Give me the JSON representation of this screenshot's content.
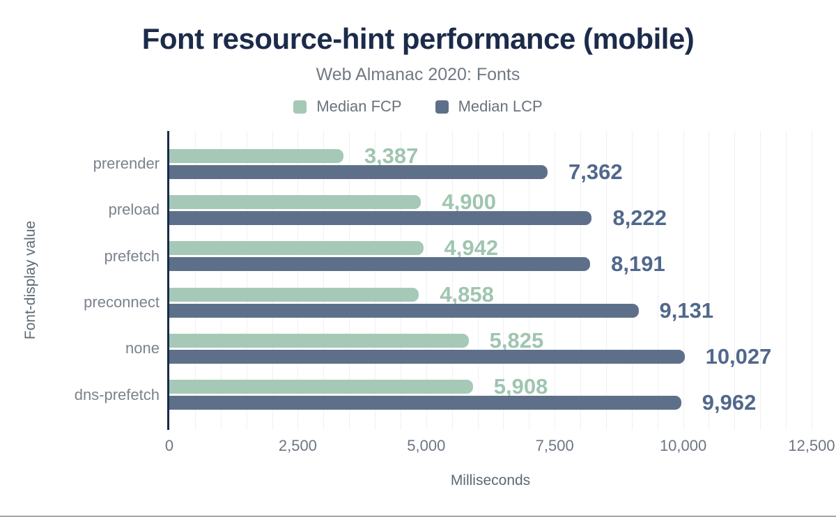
{
  "chart_data": {
    "type": "bar",
    "orientation": "horizontal",
    "title": "Font resource-hint performance (mobile)",
    "subtitle": "Web Almanac 2020: Fonts",
    "xlabel": "Milliseconds",
    "ylabel": "Font-display value",
    "xlim": [
      0,
      12500
    ],
    "grid_step": 500,
    "grid_on": true,
    "legend_position": "top-center",
    "xticks": [
      {
        "value": 0,
        "label": "0"
      },
      {
        "value": 2500,
        "label": "2,500"
      },
      {
        "value": 5000,
        "label": "5,000"
      },
      {
        "value": 7500,
        "label": "7,500"
      },
      {
        "value": 10000,
        "label": "10,000"
      },
      {
        "value": 12500,
        "label": "12,500"
      }
    ],
    "categories": [
      "prerender",
      "preload",
      "prefetch",
      "preconnect",
      "none",
      "dns-prefetch"
    ],
    "series": [
      {
        "name": "Median FCP",
        "color": "#a5c9b6",
        "label_color": "#9fc5af",
        "values": [
          3387,
          4900,
          4942,
          4858,
          5825,
          5908
        ],
        "display": [
          "3,387",
          "4,900",
          "4,942",
          "4,858",
          "5,825",
          "5,908"
        ]
      },
      {
        "name": "Median LCP",
        "color": "#5e7089",
        "label_color": "#51688c",
        "values": [
          7362,
          8222,
          8191,
          9131,
          10027,
          9962
        ],
        "display": [
          "7,362",
          "8,222",
          "8,191",
          "9,131",
          "10,027",
          "9,962"
        ]
      }
    ],
    "colors": {
      "title": "#1c2b4a",
      "axis_line": "#16294a",
      "gridline": "#eef0f2",
      "tick_text": "#6d7684",
      "category_text": "#7b828c",
      "frame_bottom_rule": "#a5a5a5"
    }
  }
}
